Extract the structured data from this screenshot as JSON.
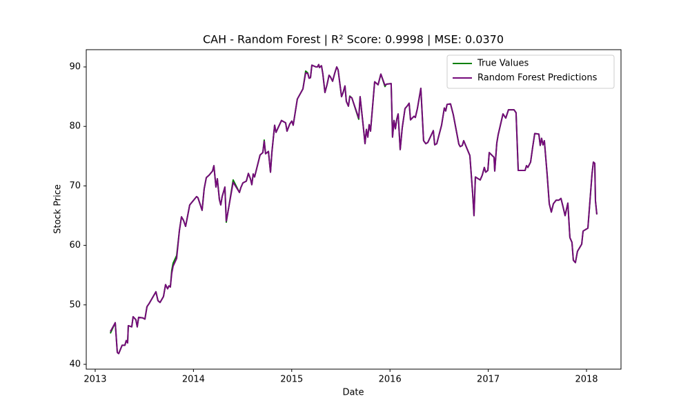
{
  "chart_data": {
    "type": "line",
    "title": "CAH - Random Forest | R² Score: 0.9998 | MSE: 0.0370",
    "xlabel": "Date",
    "ylabel": "Stock Price",
    "x": [
      2013.154,
      2013.204,
      2013.225,
      2013.239,
      2013.274,
      2013.302,
      2013.316,
      2013.33,
      2013.337,
      2013.372,
      2013.386,
      2013.414,
      2013.428,
      2013.442,
      2013.485,
      2013.506,
      2013.527,
      2013.548,
      2013.618,
      2013.639,
      2013.66,
      2013.695,
      2013.716,
      2013.737,
      2013.751,
      2013.765,
      2013.779,
      2013.793,
      2013.829,
      2013.857,
      2013.878,
      2013.899,
      2013.92,
      2013.941,
      2013.962,
      2014.032,
      2014.046,
      2014.088,
      2014.109,
      2014.131,
      2014.159,
      2014.194,
      2014.208,
      2014.229,
      2014.243,
      2014.264,
      2014.278,
      2014.292,
      2014.32,
      2014.334,
      2014.355,
      2014.404,
      2014.468,
      2014.482,
      2014.503,
      2014.538,
      2014.559,
      2014.58,
      2014.594,
      2014.608,
      2014.622,
      2014.678,
      2014.706,
      2014.72,
      2014.734,
      2014.763,
      2014.784,
      2014.798,
      2014.826,
      2014.84,
      2014.868,
      2014.896,
      2014.938,
      2014.952,
      2014.98,
      2015.001,
      2015.015,
      2015.057,
      2015.114,
      2015.142,
      2015.163,
      2015.177,
      2015.191,
      2015.205,
      2015.247,
      2015.261,
      2015.275,
      2015.282,
      2015.303,
      2015.317,
      2015.338,
      2015.359,
      2015.38,
      2015.395,
      2015.416,
      2015.437,
      2015.458,
      2015.472,
      2015.507,
      2015.521,
      2015.542,
      2015.556,
      2015.577,
      2015.591,
      2015.612,
      2015.682,
      2015.696,
      2015.725,
      2015.746,
      2015.76,
      2015.774,
      2015.788,
      2015.802,
      2015.844,
      2015.879,
      2015.907,
      2015.949,
      2015.963,
      2016.012,
      2016.026,
      2016.041,
      2016.055,
      2016.069,
      2016.083,
      2016.104,
      2016.125,
      2016.153,
      2016.174,
      2016.195,
      2016.209,
      2016.244,
      2016.258,
      2016.279,
      2016.314,
      2016.342,
      2016.364,
      2016.385,
      2016.441,
      2016.455,
      2016.476,
      2016.525,
      2016.553,
      2016.567,
      2016.581,
      2016.616,
      2016.644,
      2016.701,
      2016.715,
      2016.736,
      2016.75,
      2016.813,
      2016.841,
      2016.855,
      2016.869,
      2016.918,
      2016.939,
      2016.96,
      2016.974,
      2016.996,
      2017.01,
      2017.059,
      2017.066,
      2017.087,
      2017.101,
      2017.15,
      2017.178,
      2017.206,
      2017.262,
      2017.283,
      2017.305,
      2017.375,
      2017.389,
      2017.403,
      2017.431,
      2017.452,
      2017.473,
      2017.515,
      2017.529,
      2017.543,
      2017.557,
      2017.571,
      2017.585,
      2017.599,
      2017.621,
      2017.642,
      2017.663,
      2017.691,
      2017.719,
      2017.74,
      2017.761,
      2017.782,
      2017.81,
      2017.831,
      2017.852,
      2017.866,
      2017.887,
      2017.908,
      2017.951,
      2017.965,
      2018.014,
      2018.056,
      2018.07,
      2018.084,
      2018.091,
      2018.105
    ],
    "series": [
      {
        "name": "True Values",
        "color": "#008000",
        "values": [
          45.2,
          47,
          42,
          41.8,
          43.2,
          43.2,
          44,
          43.6,
          46.5,
          46.3,
          48,
          47.5,
          46.3,
          47.9,
          47.8,
          47.6,
          49.7,
          50.2,
          52.2,
          50.7,
          50.4,
          51.4,
          53.4,
          52.7,
          53.2,
          53,
          55.8,
          57,
          58.3,
          62.5,
          64.8,
          64.2,
          63.2,
          65,
          66.8,
          68.2,
          68,
          65.9,
          69.5,
          71.4,
          71.8,
          72.5,
          73.4,
          69.8,
          71.2,
          67.7,
          66.8,
          68.2,
          69.8,
          63.9,
          66,
          71,
          68.9,
          69.7,
          70.5,
          70.8,
          72.1,
          71.2,
          70.2,
          72,
          71.5,
          75.2,
          75.6,
          77.7,
          75.4,
          75.8,
          72.3,
          75.6,
          80.2,
          79,
          80,
          81,
          80.6,
          79.2,
          80.4,
          80.9,
          80.2,
          84.6,
          86.3,
          89.3,
          89,
          88.1,
          88.2,
          90.3,
          90,
          90,
          90.4,
          89.9,
          90.2,
          88.8,
          85.7,
          87,
          88.6,
          88.3,
          87.6,
          88.9,
          90,
          89.5,
          85,
          85.6,
          86.8,
          84.2,
          83.4,
          85.1,
          84.8,
          81.2,
          85,
          80.5,
          77.1,
          79.5,
          78.2,
          80.3,
          79.2,
          87.5,
          87,
          88.8,
          86.7,
          87.1,
          87.2,
          78.2,
          81,
          79.6,
          81.2,
          82.1,
          76.1,
          79.8,
          83,
          83.4,
          83.9,
          81.1,
          81.7,
          81.5,
          83,
          86.4,
          77.6,
          77.1,
          77.3,
          79.3,
          76.9,
          77.1,
          80.2,
          83.1,
          82.6,
          83.7,
          83.8,
          82,
          77,
          76.6,
          76.8,
          77.6,
          75.1,
          68.8,
          65,
          71.5,
          71,
          71.8,
          73.1,
          72.3,
          72.6,
          75.6,
          74.8,
          72.5,
          77.2,
          78.6,
          82.1,
          81.4,
          82.8,
          82.8,
          82.3,
          72.6,
          72.6,
          73.4,
          73.1,
          74,
          76.5,
          78.8,
          78.7,
          76.8,
          78,
          76.9,
          77.6,
          74.8,
          72,
          67,
          65.6,
          67,
          67.6,
          67.6,
          67.9,
          66.5,
          65,
          67.1,
          61.3,
          60.5,
          57.5,
          57.1,
          59,
          60.2,
          62.4,
          62.9,
          72,
          74,
          73.8,
          67.5,
          65.2
        ]
      },
      {
        "name": "Random Forest Predictions",
        "color": "#75097a",
        "values": [
          45.5,
          47,
          42,
          41.8,
          43.2,
          43.2,
          44,
          43.6,
          46.5,
          46.3,
          48,
          47.5,
          46.3,
          47.9,
          47.8,
          47.6,
          49.7,
          50.2,
          52.2,
          50.7,
          50.4,
          51.4,
          53.4,
          52.7,
          53.2,
          53,
          55.3,
          56.5,
          57.8,
          62.5,
          64.8,
          64.2,
          63.2,
          65,
          66.8,
          68.2,
          68,
          65.9,
          69.5,
          71.4,
          71.8,
          72.5,
          73.4,
          69.8,
          71.2,
          67.7,
          66.8,
          68.2,
          69.8,
          64.1,
          66,
          70.6,
          68.9,
          69.7,
          70.5,
          70.8,
          72.1,
          71.2,
          70.2,
          72,
          71.5,
          75.2,
          75.6,
          77.5,
          75.4,
          75.8,
          72.3,
          75.6,
          80.2,
          79,
          80,
          81,
          80.6,
          79.2,
          80.4,
          80.9,
          80.2,
          84.6,
          86.3,
          89,
          88.9,
          88.1,
          88.2,
          90.3,
          90,
          90,
          90.4,
          89.9,
          90.2,
          88.8,
          85.7,
          87,
          88.6,
          88.3,
          87.6,
          88.9,
          90,
          89.5,
          85,
          85.6,
          86.8,
          84.2,
          83.4,
          85,
          84.8,
          81.4,
          85,
          80.5,
          77.1,
          79.5,
          78.2,
          80.3,
          79.2,
          87.5,
          87,
          88.8,
          86.9,
          87.1,
          87.2,
          78.2,
          81,
          79.6,
          81.2,
          82.1,
          76.1,
          79.8,
          83,
          83.4,
          83.9,
          81.1,
          81.7,
          81.5,
          83,
          86.4,
          77.6,
          77.1,
          77.3,
          79.3,
          76.9,
          77.1,
          80.2,
          83.1,
          82.6,
          83.7,
          83.8,
          82,
          77,
          76.6,
          76.8,
          77.6,
          75.1,
          68.8,
          65,
          71.5,
          71,
          71.8,
          73.1,
          72.3,
          72.6,
          75.6,
          74.8,
          72.5,
          77.2,
          78.6,
          82.1,
          81.4,
          82.8,
          82.8,
          82.3,
          72.6,
          72.6,
          73.4,
          73.1,
          74,
          76.5,
          78.8,
          78.7,
          76.8,
          78,
          76.9,
          77.6,
          74.8,
          72,
          67,
          65.6,
          67,
          67.6,
          67.6,
          67.9,
          66.5,
          65,
          67.1,
          61.3,
          60.5,
          57.5,
          57.1,
          59,
          60.2,
          62.4,
          62.9,
          72,
          74,
          73.8,
          67.5,
          65.2
        ]
      }
    ],
    "xlim": [
      2012.909,
      2018.351
    ],
    "xticks": [
      2013,
      2014,
      2015,
      2016,
      2017,
      2018
    ],
    "ylim": [
      39.19,
      92.9
    ],
    "yticks": [
      40,
      50,
      60,
      70,
      80,
      90
    ],
    "legend": "upper right"
  }
}
